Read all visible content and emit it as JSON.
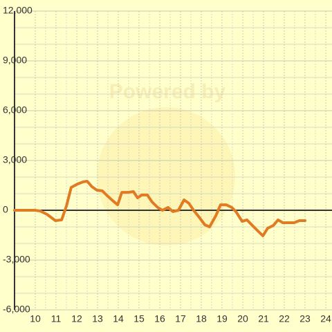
{
  "chart_data": {
    "type": "line",
    "watermark": "Powered by",
    "x": [
      9,
      9.97,
      10.23,
      10.57,
      10.97,
      11.27,
      11.5,
      11.73,
      12.03,
      12.3,
      12.5,
      12.73,
      12.97,
      13.23,
      13.47,
      13.73,
      13.97,
      14.17,
      14.47,
      14.73,
      14.93,
      15.13,
      15.4,
      15.63,
      15.9,
      16.13,
      16.4,
      16.63,
      16.9,
      17.17,
      17.4,
      17.63,
      17.9,
      18.17,
      18.4,
      18.7,
      18.93,
      19.2,
      19.47,
      19.67,
      19.97,
      20.2,
      20.5,
      20.73,
      20.97,
      21.2,
      21.47,
      21.7,
      21.93,
      22.23,
      22.47,
      22.73,
      23.0
    ],
    "values": [
      0,
      0,
      -40,
      -250,
      -625,
      -580,
      250,
      1375,
      1580,
      1710,
      1750,
      1420,
      1210,
      1170,
      875,
      580,
      330,
      1080,
      1080,
      1125,
      750,
      920,
      920,
      500,
      170,
      0,
      170,
      -80,
      0,
      625,
      420,
      0,
      -420,
      -875,
      -1000,
      -330,
      330,
      330,
      170,
      -80,
      -670,
      -580,
      -960,
      -1250,
      -1540,
      -1080,
      -920,
      -580,
      -750,
      -750,
      -750,
      -625,
      -625
    ],
    "color": "#e07b24",
    "xlim": [
      9,
      24.3
    ],
    "xticks": [
      10,
      11,
      12,
      13,
      14,
      15,
      16,
      17,
      18,
      19,
      20,
      21,
      22,
      23,
      24
    ],
    "ylim": [
      -6000,
      12000
    ],
    "yticks": [
      {
        "value": -6000,
        "label": "-6,000"
      },
      {
        "value": -3000,
        "label": "-3,000"
      },
      0,
      {
        "value": 3000,
        "label": "3,000"
      },
      {
        "value": 6000,
        "label": "6,000"
      },
      {
        "value": 9000,
        "label": "9,000"
      },
      {
        "value": 12000,
        "label": "12,000"
      }
    ],
    "grid": true
  }
}
